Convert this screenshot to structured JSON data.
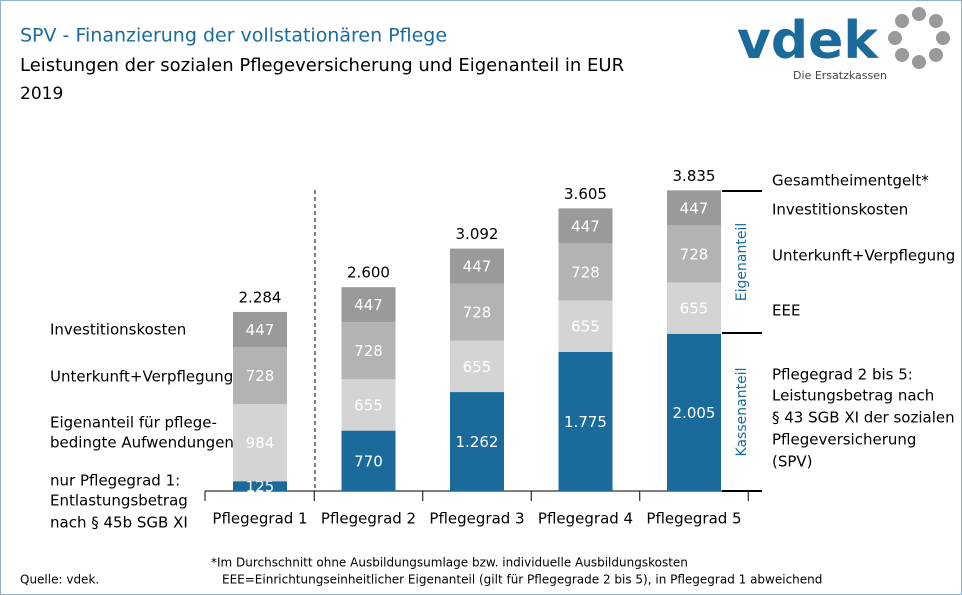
{
  "header": {
    "title": "SPV - Finanzierung der vollstationären Pflege",
    "subtitle": "Leistungen der sozialen Pflegeversicherung und Eigenanteil in EUR",
    "year": "2019"
  },
  "logo": {
    "name": "vdek",
    "tagline": "Die Ersatzkassen"
  },
  "chart_data": {
    "type": "stacked-bar",
    "categories": [
      "Pflegegrad 1",
      "Pflegegrad 2",
      "Pflegegrad 3",
      "Pflegegrad 4",
      "Pflegegrad 5"
    ],
    "series": [
      {
        "name": [
          "Pflegegrad 2 bis 5:",
          "Leistungsbetrag nach",
          "§ 43 SGB XI der sozialen",
          "Pflegeversicherung",
          "(SPV)"
        ],
        "color": "#1a6b9c",
        "values": [
          125,
          770,
          1262,
          1775,
          2005
        ],
        "value_labels": [
          "125",
          "770",
          "1.262",
          "1.775",
          "2.005"
        ]
      },
      {
        "name": "EEE",
        "color": "#d4d4d4",
        "values": [
          984,
          655,
          655,
          655,
          655
        ]
      },
      {
        "name": "Unterkunft+Verpflegung",
        "color": "#b3b3b3",
        "values": [
          728,
          728,
          728,
          728,
          728
        ]
      },
      {
        "name": "Investitionskosten",
        "color": "#9a9a9a",
        "values": [
          447,
          447,
          447,
          447,
          447
        ]
      }
    ],
    "left_labels": [
      [
        "nur Pflegegrad 1:",
        "Entlastungsbetrag",
        "nach § 45b SGB XI"
      ],
      [
        "Eigenanteil für pflege-",
        "bedingte Aufwendungen"
      ],
      [
        "Unterkunft+Verpflegung"
      ],
      [
        "Investitionskosten"
      ]
    ],
    "totals": {
      "name": "Gesamtheimentgelt*",
      "values": [
        2284,
        2600,
        3092,
        3605,
        3835
      ],
      "value_labels": [
        "2.284",
        "2.600",
        "3.092",
        "3.605",
        "3.835"
      ]
    },
    "bracket_labels": [
      "Kassenanteil",
      "Eigenanteil"
    ]
  },
  "footer": {
    "source": "Quelle: vdek.",
    "notes": [
      "*Im Durchschnitt ohne Ausbildungsumlage bzw. individuelle Ausbildungskosten",
      "EEE=Einrichtungseinheitlicher Eigenanteil (gilt für Pflegegrade 2 bis 5), in Pflegegrad 1 abweichend"
    ]
  }
}
